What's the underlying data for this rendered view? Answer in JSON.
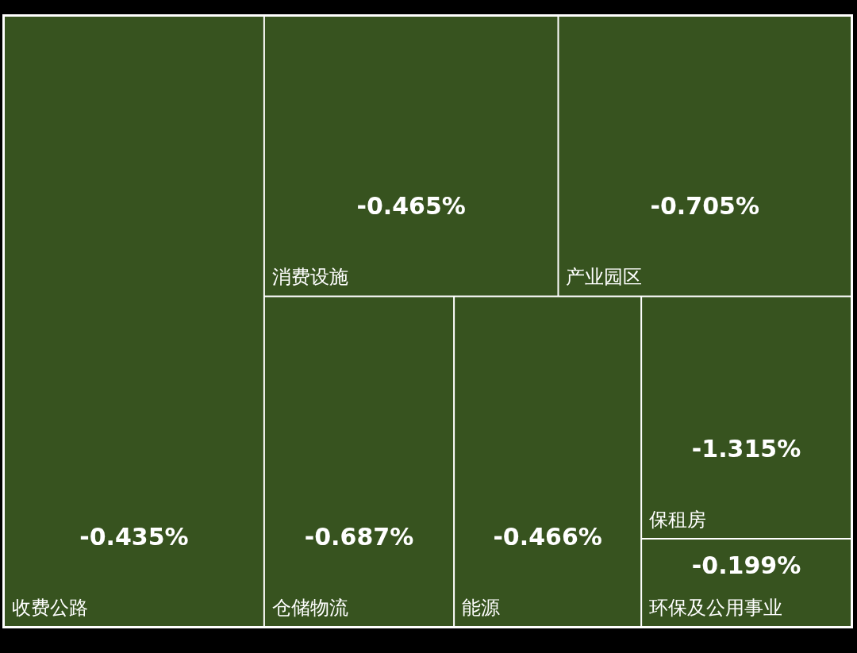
{
  "chart_data": {
    "type": "other",
    "categories": [
      "收费公路",
      "消费设施",
      "产业园区",
      "仓储物流",
      "能源",
      "保租房",
      "环保及公用事业"
    ],
    "values": [
      -0.435,
      -0.465,
      -0.705,
      -0.687,
      -0.466,
      -1.315,
      -0.199
    ],
    "value_labels": [
      "-0.435%",
      "-0.465%",
      "-0.705%",
      "-0.687%",
      "-0.466%",
      "-1.315%",
      "-0.199%"
    ],
    "color": "#37531f"
  }
}
